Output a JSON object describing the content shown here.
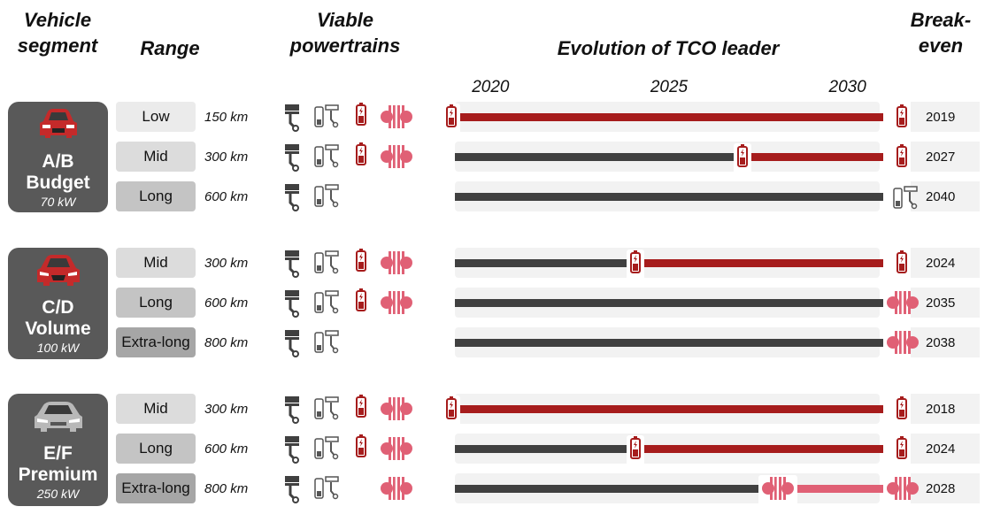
{
  "headers": {
    "vehicle_segment_line1": "Vehicle",
    "vehicle_segment_line2": "segment",
    "range": "Range",
    "viable_line1": "Viable",
    "viable_line2": "powertrains",
    "evolution": "Evolution of TCO leader",
    "breakeven_line1": "Break-",
    "breakeven_line2": "even"
  },
  "timeline": {
    "years": [
      "2020",
      "2025",
      "2030"
    ],
    "start_year": 2019,
    "end_year": 2031
  },
  "colors": {
    "ice": "#404040",
    "bev": "#a61c1c",
    "fcev": "#e06075",
    "segment_box": "#595959",
    "range_low": "#ebebeb",
    "range_mid": "#dcdcdc",
    "range_long": "#c4c4c4",
    "range_xlong": "#a6a6a6"
  },
  "segments": [
    {
      "code": "A/B",
      "name": "Budget",
      "power": "70 kW",
      "car_icon": "car-front-red-icon",
      "rows": [
        {
          "range": "Low",
          "km": "150 km",
          "powertrains": [
            "ice",
            "phev",
            "bev",
            "fcev"
          ],
          "bars": [
            {
              "from": 2019,
              "to": 2031,
              "type": "bev"
            }
          ],
          "switches": [
            {
              "year": 2019,
              "to": "bev",
              "at_start": true
            }
          ],
          "leader": "bev",
          "breakeven": "2019"
        },
        {
          "range": "Mid",
          "km": "300 km",
          "powertrains": [
            "ice",
            "phev",
            "bev",
            "fcev"
          ],
          "bars": [
            {
              "from": 2019,
              "to": 2027,
              "type": "ice"
            },
            {
              "from": 2027,
              "to": 2031,
              "type": "bev"
            }
          ],
          "switches": [
            {
              "year": 2027,
              "to": "bev"
            }
          ],
          "leader": "bev",
          "breakeven": "2027"
        },
        {
          "range": "Long",
          "km": "600 km",
          "powertrains": [
            "ice",
            "phev"
          ],
          "bars": [
            {
              "from": 2019,
              "to": 2031,
              "type": "ice"
            }
          ],
          "switches": [],
          "leader": "phev",
          "breakeven": "2040"
        }
      ]
    },
    {
      "code": "C/D",
      "name": "Volume",
      "power": "100 kW",
      "car_icon": "car-front-red-icon",
      "rows": [
        {
          "range": "Mid",
          "km": "300 km",
          "powertrains": [
            "ice",
            "phev",
            "bev",
            "fcev"
          ],
          "bars": [
            {
              "from": 2019,
              "to": 2024,
              "type": "ice"
            },
            {
              "from": 2024,
              "to": 2031,
              "type": "bev"
            }
          ],
          "switches": [
            {
              "year": 2024,
              "to": "bev"
            }
          ],
          "leader": "bev",
          "breakeven": "2024"
        },
        {
          "range": "Long",
          "km": "600 km",
          "powertrains": [
            "ice",
            "phev",
            "bev",
            "fcev"
          ],
          "bars": [
            {
              "from": 2019,
              "to": 2031,
              "type": "ice"
            }
          ],
          "switches": [],
          "leader": "fcev",
          "breakeven": "2035"
        },
        {
          "range": "Extra-long",
          "km": "800 km",
          "powertrains": [
            "ice",
            "phev"
          ],
          "bars": [
            {
              "from": 2019,
              "to": 2031,
              "type": "ice"
            }
          ],
          "switches": [],
          "leader": "fcev",
          "breakeven": "2038"
        }
      ]
    },
    {
      "code": "E/F",
      "name": "Premium",
      "power": "250 kW",
      "car_icon": "car-front-gray-icon",
      "rows": [
        {
          "range": "Mid",
          "km": "300 km",
          "powertrains": [
            "ice",
            "phev",
            "bev",
            "fcev"
          ],
          "bars": [
            {
              "from": 2019,
              "to": 2031,
              "type": "bev"
            }
          ],
          "switches": [
            {
              "year": 2019,
              "to": "bev",
              "at_start": true
            }
          ],
          "leader": "bev",
          "breakeven": "2018"
        },
        {
          "range": "Long",
          "km": "600 km",
          "powertrains": [
            "ice",
            "phev",
            "bev",
            "fcev"
          ],
          "bars": [
            {
              "from": 2019,
              "to": 2024,
              "type": "ice"
            },
            {
              "from": 2024,
              "to": 2031,
              "type": "bev"
            }
          ],
          "switches": [
            {
              "year": 2024,
              "to": "bev"
            }
          ],
          "leader": "bev",
          "breakeven": "2024"
        },
        {
          "range": "Extra-long",
          "km": "800 km",
          "powertrains": [
            "ice",
            "phev",
            "fcev"
          ],
          "bars": [
            {
              "from": 2019,
              "to": 2028,
              "type": "ice"
            },
            {
              "from": 2028,
              "to": 2031,
              "type": "fcev"
            }
          ],
          "switches": [
            {
              "year": 2028,
              "to": "fcev"
            }
          ],
          "leader": "fcev",
          "breakeven": "2028"
        }
      ]
    }
  ]
}
